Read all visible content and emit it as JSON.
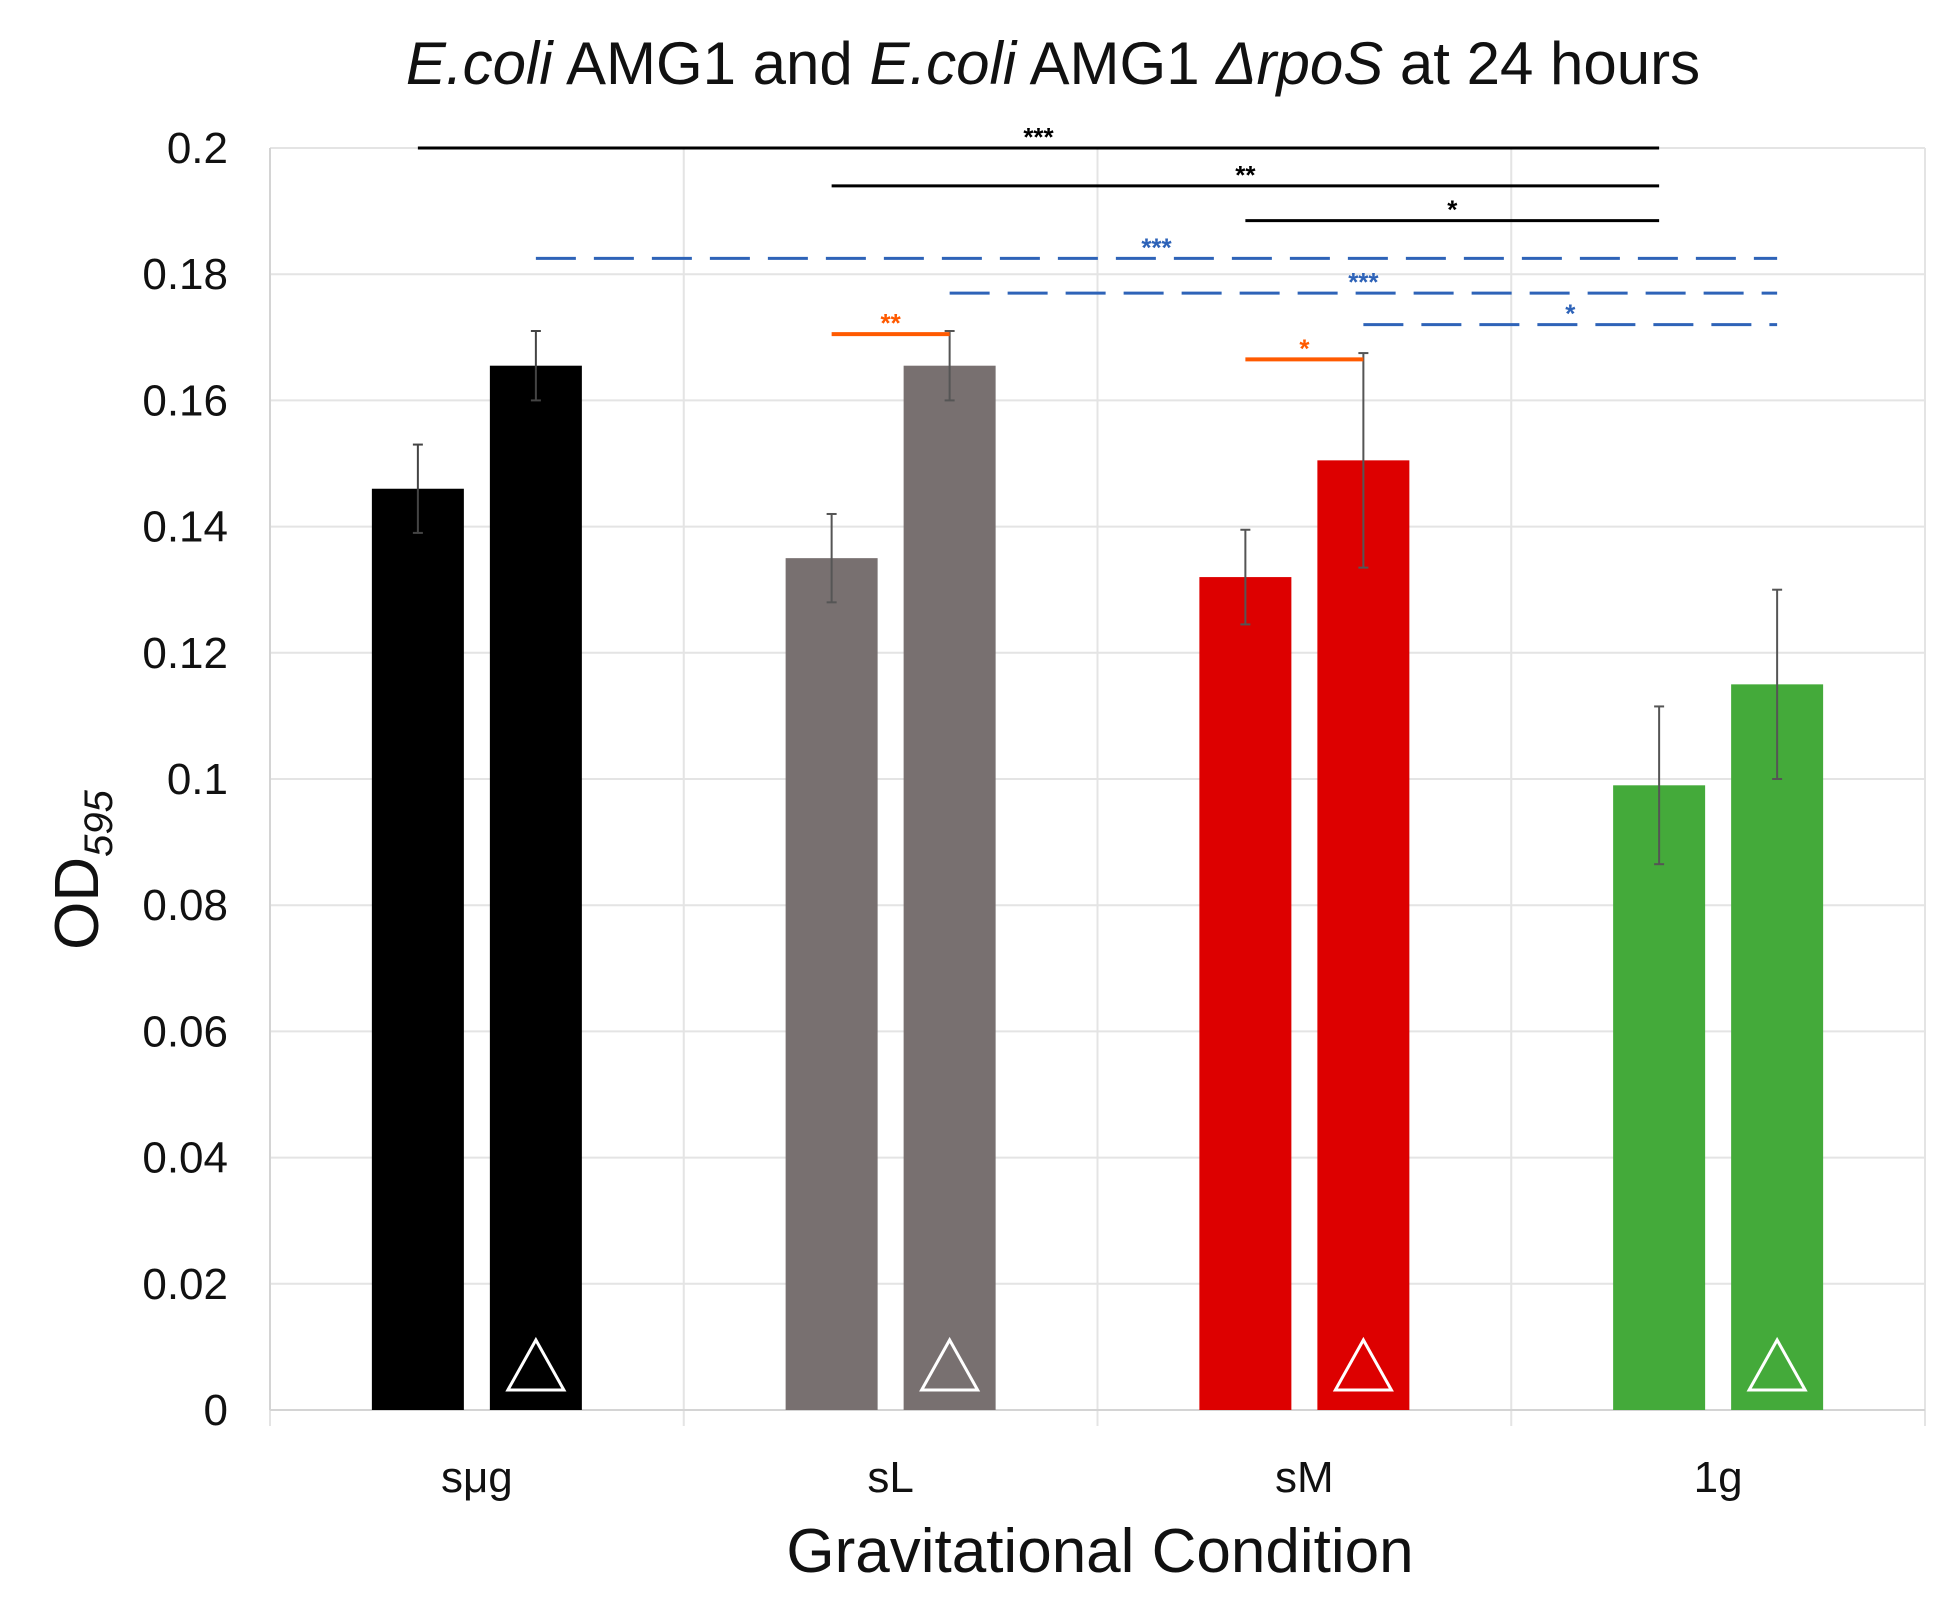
{
  "chart_data": {
    "type": "bar",
    "title": {
      "parts": [
        {
          "text": "E.coli",
          "italic": true
        },
        {
          "text": " AMG1 and ",
          "italic": false
        },
        {
          "text": "E.coli",
          "italic": true
        },
        {
          "text": " AMG1 ",
          "italic": false
        },
        {
          "text": "ΔrpoS",
          "italic": true
        },
        {
          "text": " at 24 hours",
          "italic": false
        }
      ]
    },
    "xlabel": "Gravitational Condition",
    "ylabel": {
      "main": "OD",
      "subscript": "595"
    },
    "ylim": [
      0,
      0.2
    ],
    "yticks": [
      "0",
      "0.02",
      "0.04",
      "0.06",
      "0.08",
      "0.1",
      "0.12",
      "0.14",
      "0.16",
      "0.18",
      "0.2"
    ],
    "grid": true,
    "categories": [
      "sμg",
      "sL",
      "sM",
      "1g"
    ],
    "colors": [
      "#000000",
      "#787070",
      "#dd0000",
      "#44aa3a"
    ],
    "series": [
      {
        "name": "E.coli AMG1",
        "marker": "none",
        "values": [
          0.146,
          0.135,
          0.132,
          0.099
        ],
        "errors": [
          0.007,
          0.007,
          0.0075,
          0.0125
        ]
      },
      {
        "name": "E.coli AMG1 ΔrpoS",
        "marker": "triangle",
        "values": [
          0.1655,
          0.1655,
          0.1505,
          0.115
        ],
        "errors": [
          0.0055,
          0.0055,
          0.017,
          0.015
        ]
      }
    ],
    "significance": [
      {
        "from_category": 0,
        "from_series": 0,
        "to_category": 3,
        "to_series": 0,
        "y": 0.2,
        "label": "***",
        "color": "#000000",
        "style": "solid"
      },
      {
        "from_category": 1,
        "from_series": 0,
        "to_category": 3,
        "to_series": 0,
        "y": 0.194,
        "label": "**",
        "color": "#000000",
        "style": "solid"
      },
      {
        "from_category": 2,
        "from_series": 0,
        "to_category": 3,
        "to_series": 0,
        "y": 0.1885,
        "label": "*",
        "color": "#000000",
        "style": "solid"
      },
      {
        "from_category": 0,
        "from_series": 1,
        "to_category": 3,
        "to_series": 1,
        "y": 0.1825,
        "label": "***",
        "color": "#2e63b8",
        "style": "dashed"
      },
      {
        "from_category": 1,
        "from_series": 1,
        "to_category": 3,
        "to_series": 1,
        "y": 0.177,
        "label": "***",
        "color": "#2e63b8",
        "style": "dashed"
      },
      {
        "from_category": 2,
        "from_series": 1,
        "to_category": 3,
        "to_series": 1,
        "y": 0.172,
        "label": "*",
        "color": "#2e63b8",
        "style": "dashed"
      },
      {
        "from_category": 1,
        "from_series": 0,
        "to_category": 1,
        "to_series": 1,
        "y": 0.1705,
        "label": "**",
        "color": "#ff5a00",
        "style": "solid"
      },
      {
        "from_category": 2,
        "from_series": 0,
        "to_category": 2,
        "to_series": 1,
        "y": 0.1665,
        "label": "*",
        "color": "#ff5a00",
        "style": "solid"
      }
    ]
  }
}
